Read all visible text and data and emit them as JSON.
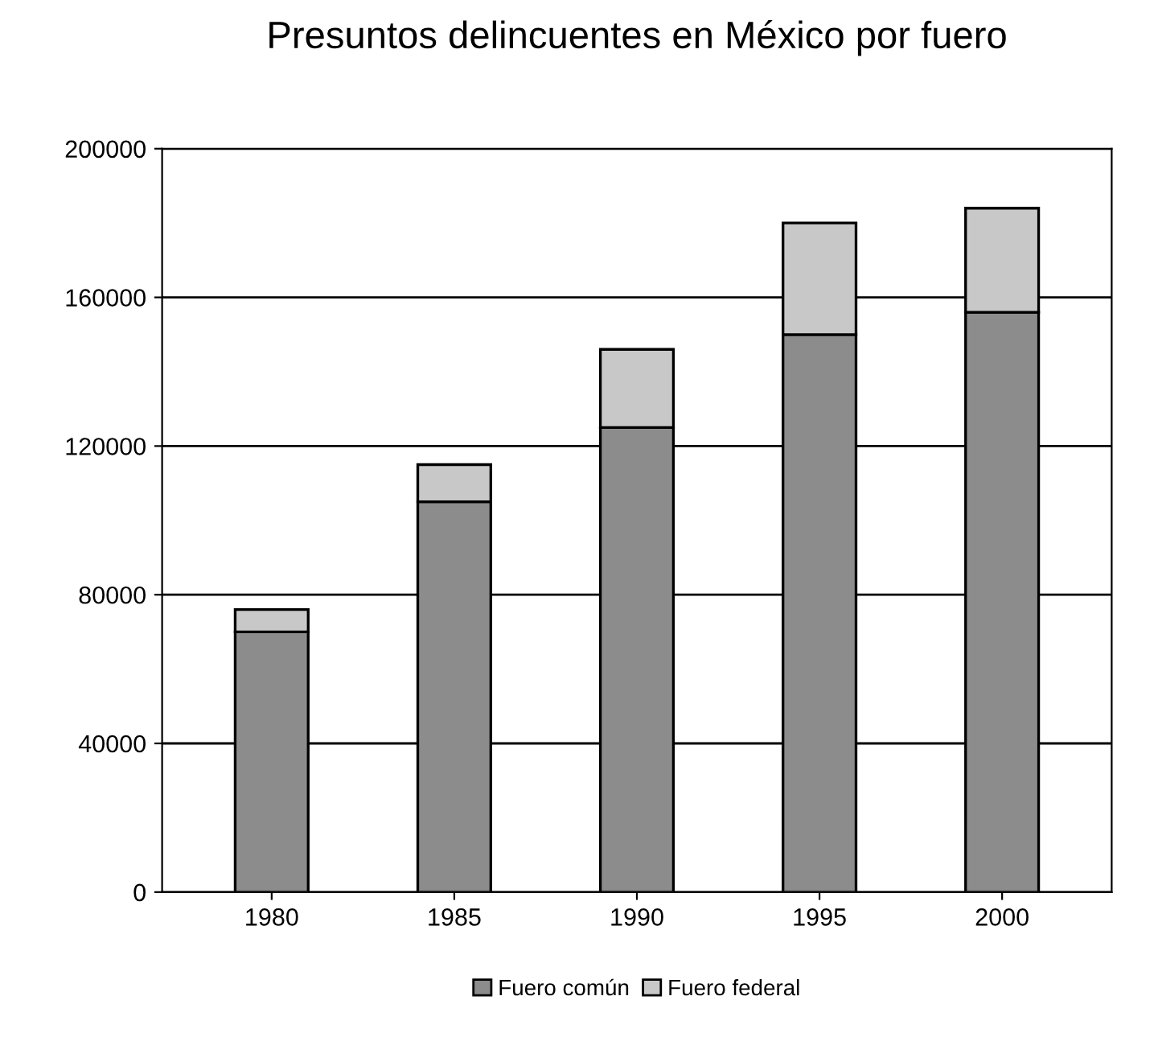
{
  "chart_data": {
    "type": "bar",
    "title": "Presuntos delincuentes en México por fuero",
    "categories": [
      "1980",
      "1985",
      "1990",
      "1995",
      "2000"
    ],
    "stacked": true,
    "series": [
      {
        "name": "Fuero común",
        "color": "#8c8c8c",
        "values": [
          70000,
          105000,
          125000,
          150000,
          156000
        ]
      },
      {
        "name": "Fuero federal",
        "color": "#c8c8c8",
        "values": [
          6000,
          10000,
          21000,
          30000,
          28000
        ]
      }
    ],
    "ylim": [
      0,
      200000
    ],
    "yticks": [
      0,
      40000,
      80000,
      120000,
      160000,
      200000
    ],
    "grid": "y",
    "legend": "bottom"
  }
}
